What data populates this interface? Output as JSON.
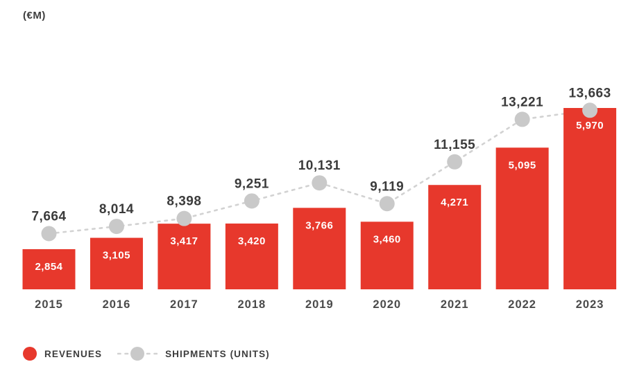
{
  "title": "(€M)",
  "legend": {
    "revenues_label": "REVENUES",
    "shipments_label": "SHIPMENTS (UNITS)"
  },
  "colors": {
    "bar": "#e7382c",
    "bar_label": "#ffffff",
    "dot": "#c9c9c9",
    "dash_line": "#d2d2d2",
    "value_label": "#3b3b3b",
    "year_label": "#4a4a4a",
    "legend_text": "#3d3d3d"
  },
  "chart_data": {
    "type": "bar",
    "title": "(€M)",
    "categories": [
      "2015",
      "2016",
      "2017",
      "2018",
      "2019",
      "2020",
      "2021",
      "2022",
      "2023"
    ],
    "series": [
      {
        "name": "REVENUES",
        "type": "bar",
        "unit": "€M",
        "values": [
          2854,
          3105,
          3417,
          3420,
          3766,
          3460,
          4271,
          5095,
          5970
        ]
      },
      {
        "name": "SHIPMENTS (UNITS)",
        "type": "line",
        "marker": "circle",
        "line_style": "dashed",
        "values": [
          7664,
          8014,
          8398,
          9251,
          10131,
          9119,
          11155,
          13221,
          13663
        ]
      }
    ],
    "grid": false,
    "axes_visible": false,
    "data_labels": true,
    "legend_position": "bottom-left"
  }
}
